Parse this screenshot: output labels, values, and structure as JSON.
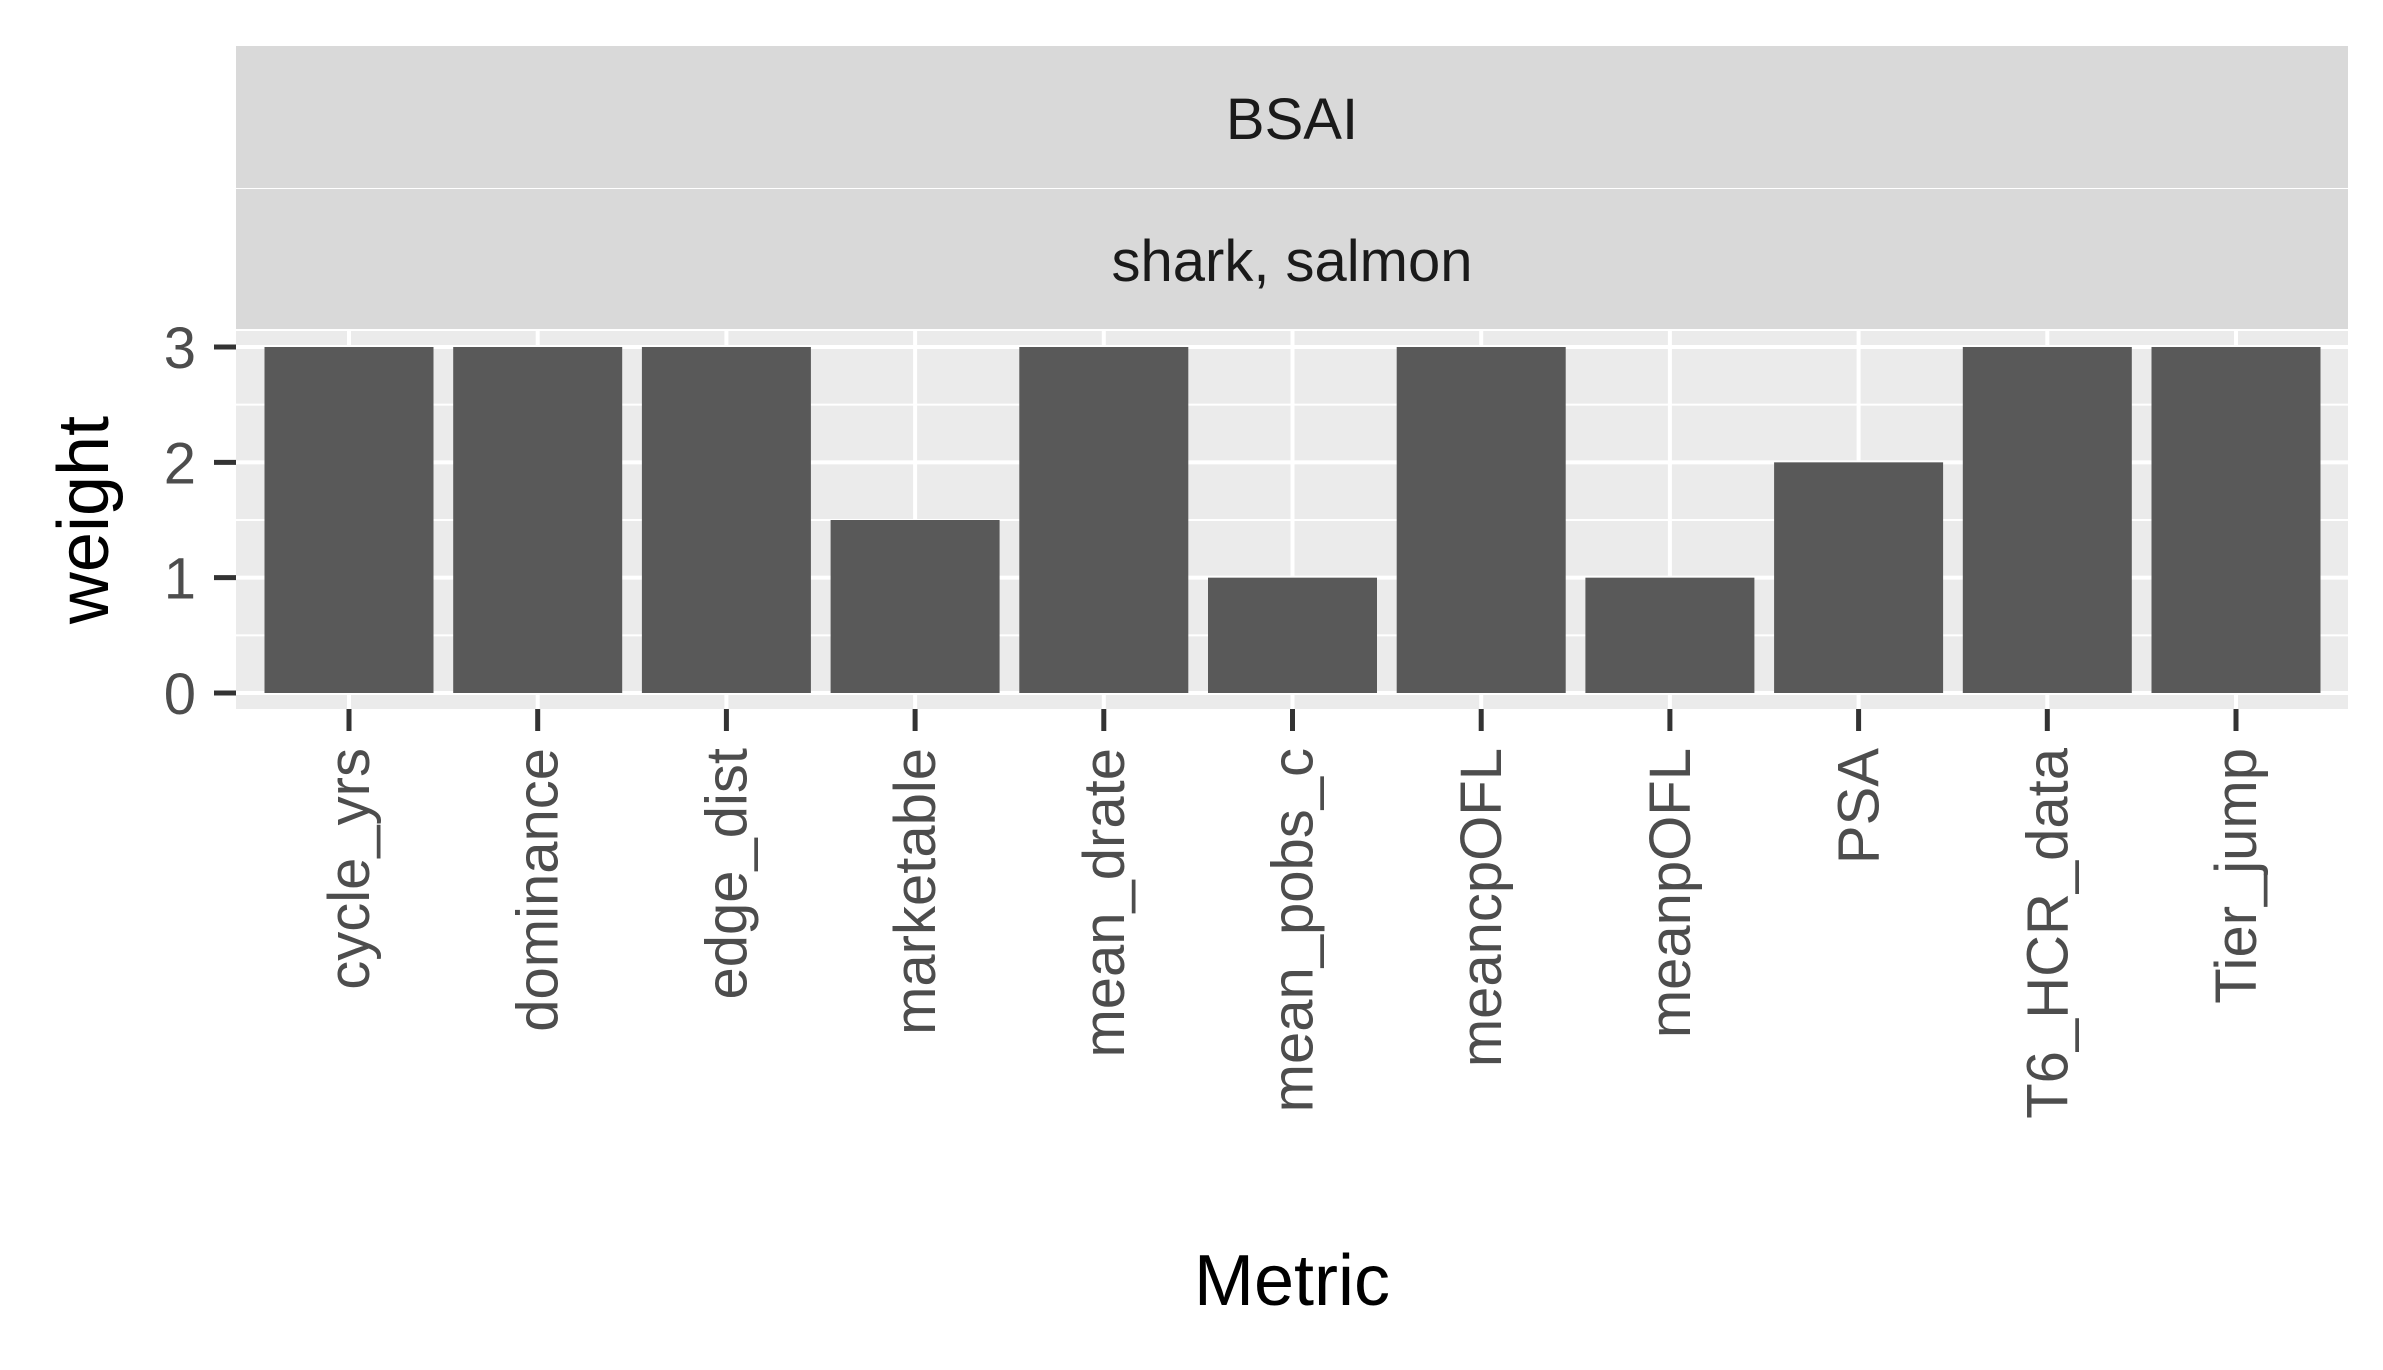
{
  "chart_data": {
    "type": "bar",
    "facet_strips": [
      "BSAI",
      "shark, salmon"
    ],
    "categories": [
      "cycle_yrs",
      "dominance",
      "edge_dist",
      "marketable",
      "mean_drate",
      "mean_pobs_c",
      "meancpOFL",
      "meanpOFL",
      "PSA",
      "T6_HCR_data",
      "Tier_jump"
    ],
    "values": [
      3,
      3,
      3,
      1.5,
      3,
      1,
      3,
      1,
      2,
      3,
      3
    ],
    "xlabel": "Metric",
    "ylabel": "weight",
    "ylim": [
      0,
      3
    ],
    "yticks": [
      "0",
      "1",
      "2",
      "3"
    ],
    "grid": true,
    "colors": {
      "bar": "#595959",
      "panel_background": "#ebebeb",
      "strip_background": "#d9d9d9",
      "gridline": "#ffffff"
    }
  }
}
